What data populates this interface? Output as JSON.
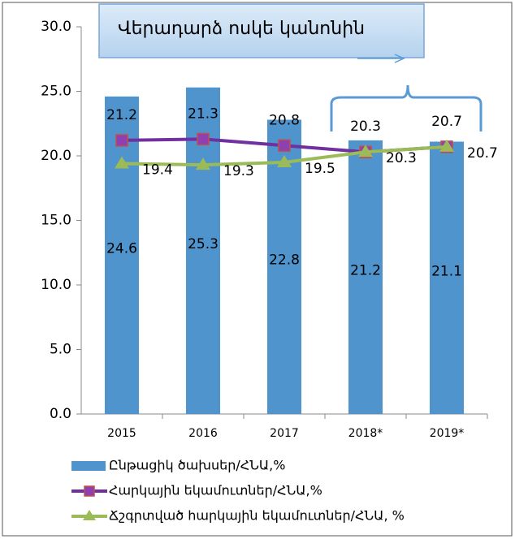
{
  "chart_data": {
    "type": "bar",
    "annotation": "Վերադարձ ոսկե կանոնին",
    "categories": [
      "2015",
      "2016",
      "2017",
      "2018*",
      "2019*"
    ],
    "series": [
      {
        "name": "Ընթացիկ ծախսեր/ՀՆԱ,%",
        "type": "bar",
        "color": "#4f94cd",
        "values": [
          24.6,
          25.3,
          22.8,
          21.2,
          21.1
        ]
      },
      {
        "name": "Հարկային եկամուտներ/ՀՆԱ,%",
        "type": "line",
        "color": "#7030a0",
        "marker": "square",
        "values": [
          21.2,
          21.3,
          20.8,
          20.3,
          20.7
        ]
      },
      {
        "name": "Ճշգրտված հարկային եկամուտներ/ՀՆԱ, %",
        "type": "line",
        "color": "#9bbb59",
        "marker": "triangle",
        "values": [
          19.4,
          19.3,
          19.5,
          20.3,
          20.7
        ]
      }
    ],
    "ylim": [
      0,
      30
    ],
    "yticks": [
      {
        "value": 0,
        "label": "0.0"
      },
      {
        "value": 5,
        "label": "5.0"
      },
      {
        "value": 10,
        "label": "10.0"
      },
      {
        "value": 15,
        "label": "15.0"
      },
      {
        "value": 20,
        "label": "20.0"
      },
      {
        "value": 25,
        "label": "25.0"
      },
      {
        "value": 30,
        "label": "30.0"
      }
    ],
    "grid": false
  }
}
